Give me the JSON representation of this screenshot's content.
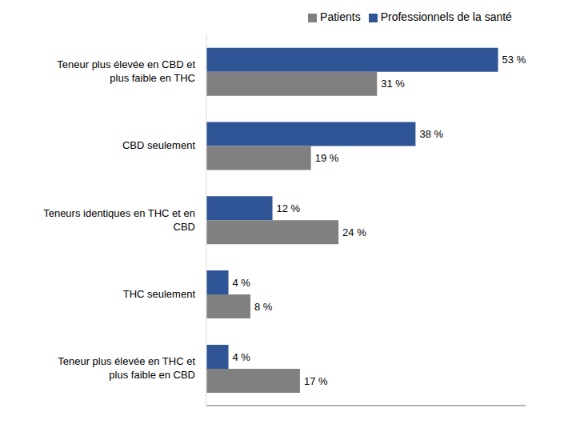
{
  "chart_data": {
    "type": "bar",
    "orientation": "horizontal",
    "categories": [
      "Teneur plus élevée en CBD et plus faible en THC",
      "CBD seulement",
      "Teneurs identiques en THC et en CBD",
      "THC seulement",
      "Teneur plus élevée en THC et plus faible en CBD"
    ],
    "series": [
      {
        "name": "Professionnels de la santé",
        "color": "#2F5597",
        "values": [
          53,
          38,
          12,
          4,
          4
        ],
        "value_labels": [
          "53 %",
          "38 %",
          "12 %",
          "4 %",
          "4 %"
        ]
      },
      {
        "name": "Patients",
        "color": "#808080",
        "values": [
          31,
          19,
          24,
          8,
          17
        ],
        "value_labels": [
          "31 %",
          "19 %",
          "24 %",
          "8 %",
          "17 %"
        ]
      }
    ],
    "xlim": [
      0,
      58
    ],
    "grid": false,
    "legend": "top",
    "data_labels": true,
    "tick_labels": "y"
  }
}
